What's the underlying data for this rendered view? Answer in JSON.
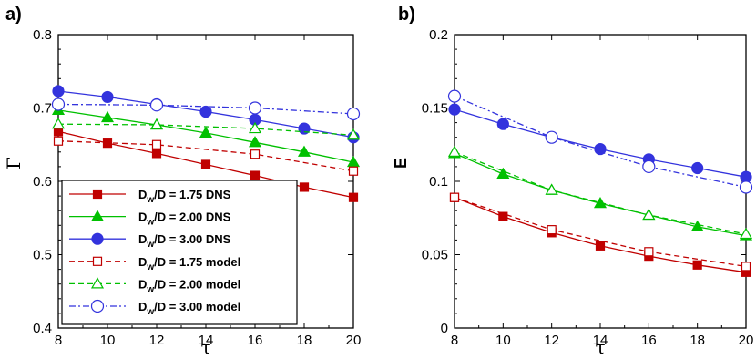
{
  "chart_data": [
    {
      "panel_label": "a)",
      "type": "line",
      "xlabel": "τ",
      "ylabel": "Γ",
      "xlim": [
        8,
        20
      ],
      "ylim": [
        0.4,
        0.8
      ],
      "xticks": [
        "8",
        "10",
        "12",
        "14",
        "16",
        "18",
        "20"
      ],
      "yticks": [
        "0.4",
        "0.5",
        "0.6",
        "0.7",
        "0.8"
      ],
      "legend_position": "bottom-left",
      "series": [
        {
          "name": "D_w/D = 1.75 DNS",
          "color": "#c00000",
          "dash": "solid",
          "marker": "square",
          "filled": true,
          "x": [
            8,
            10,
            12,
            14,
            16,
            18,
            20
          ],
          "y": [
            0.668,
            0.652,
            0.638,
            0.623,
            0.608,
            0.592,
            0.578
          ]
        },
        {
          "name": "D_w/D = 2.00 DNS",
          "color": "#00c000",
          "dash": "solid",
          "marker": "triangle",
          "filled": true,
          "x": [
            8,
            10,
            12,
            14,
            16,
            18,
            20
          ],
          "y": [
            0.697,
            0.687,
            0.677,
            0.666,
            0.653,
            0.64,
            0.626
          ]
        },
        {
          "name": "D_w/D = 3.00 DNS",
          "color": "#3333dd",
          "dash": "solid",
          "marker": "circle",
          "filled": true,
          "x": [
            8,
            10,
            12,
            14,
            16,
            18,
            20
          ],
          "y": [
            0.723,
            0.715,
            0.705,
            0.695,
            0.684,
            0.672,
            0.66
          ]
        },
        {
          "name": "D_w/D = 1.75 model",
          "color": "#c00000",
          "dash": "dashed",
          "marker": "square",
          "filled": false,
          "x": [
            8,
            12,
            16,
            20
          ],
          "y": [
            0.655,
            0.65,
            0.637,
            0.614
          ]
        },
        {
          "name": "D_w/D = 2.00 model",
          "color": "#00c000",
          "dash": "dashed",
          "marker": "triangle",
          "filled": false,
          "x": [
            8,
            12,
            16,
            20
          ],
          "y": [
            0.678,
            0.677,
            0.672,
            0.663
          ]
        },
        {
          "name": "D_w/D = 3.00 model",
          "color": "#3333dd",
          "dash": "dashdot",
          "marker": "circle",
          "filled": false,
          "x": [
            8,
            12,
            16,
            20
          ],
          "y": [
            0.705,
            0.704,
            0.7,
            0.692
          ]
        }
      ]
    },
    {
      "panel_label": "b)",
      "type": "line",
      "xlabel": "τ",
      "ylabel": "E",
      "xlim": [
        8,
        20
      ],
      "ylim": [
        0,
        0.2
      ],
      "xticks": [
        "8",
        "10",
        "12",
        "14",
        "16",
        "18",
        "20"
      ],
      "yticks": [
        "0",
        "0.05",
        "0.1",
        "0.15",
        "0.2"
      ],
      "series": [
        {
          "name": "D_w/D = 1.75 DNS",
          "color": "#c00000",
          "dash": "solid",
          "marker": "square",
          "filled": true,
          "x": [
            8,
            10,
            12,
            14,
            16,
            18,
            20
          ],
          "y": [
            0.089,
            0.076,
            0.065,
            0.056,
            0.049,
            0.043,
            0.038
          ]
        },
        {
          "name": "D_w/D = 2.00 DNS",
          "color": "#00c000",
          "dash": "solid",
          "marker": "triangle",
          "filled": true,
          "x": [
            8,
            10,
            12,
            14,
            16,
            18,
            20
          ],
          "y": [
            0.119,
            0.105,
            0.094,
            0.085,
            0.077,
            0.069,
            0.063
          ]
        },
        {
          "name": "D_w/D = 3.00 DNS",
          "color": "#3333dd",
          "dash": "solid",
          "marker": "circle",
          "filled": true,
          "x": [
            8,
            10,
            12,
            14,
            16,
            18,
            20
          ],
          "y": [
            0.149,
            0.139,
            0.13,
            0.122,
            0.115,
            0.109,
            0.103
          ]
        },
        {
          "name": "D_w/D = 1.75 model",
          "color": "#c00000",
          "dash": "dashed",
          "marker": "square",
          "filled": false,
          "x": [
            8,
            12,
            16,
            20
          ],
          "y": [
            0.089,
            0.067,
            0.052,
            0.042
          ]
        },
        {
          "name": "D_w/D = 2.00 model",
          "color": "#00c000",
          "dash": "dashed",
          "marker": "triangle",
          "filled": false,
          "x": [
            8,
            12,
            16,
            20
          ],
          "y": [
            0.12,
            0.094,
            0.077,
            0.064
          ]
        },
        {
          "name": "D_w/D = 3.00 model",
          "color": "#3333dd",
          "dash": "dashdot",
          "marker": "circle",
          "filled": false,
          "x": [
            8,
            12,
            16,
            20
          ],
          "y": [
            0.158,
            0.13,
            0.11,
            0.096
          ]
        }
      ]
    }
  ],
  "legend": {
    "entries": [
      {
        "prefix": "D",
        "sub": "w",
        "text": "/D = 1.75 DNS"
      },
      {
        "prefix": "D",
        "sub": "w",
        "text": "/D = 2.00 DNS"
      },
      {
        "prefix": "D",
        "sub": "w",
        "text": "/D = 3.00 DNS"
      },
      {
        "prefix": "D",
        "sub": "w",
        "text": "/D = 1.75 model"
      },
      {
        "prefix": "D",
        "sub": "w",
        "text": "/D = 2.00 model"
      },
      {
        "prefix": "D",
        "sub": "w",
        "text": "/D = 3.00 model"
      }
    ]
  }
}
